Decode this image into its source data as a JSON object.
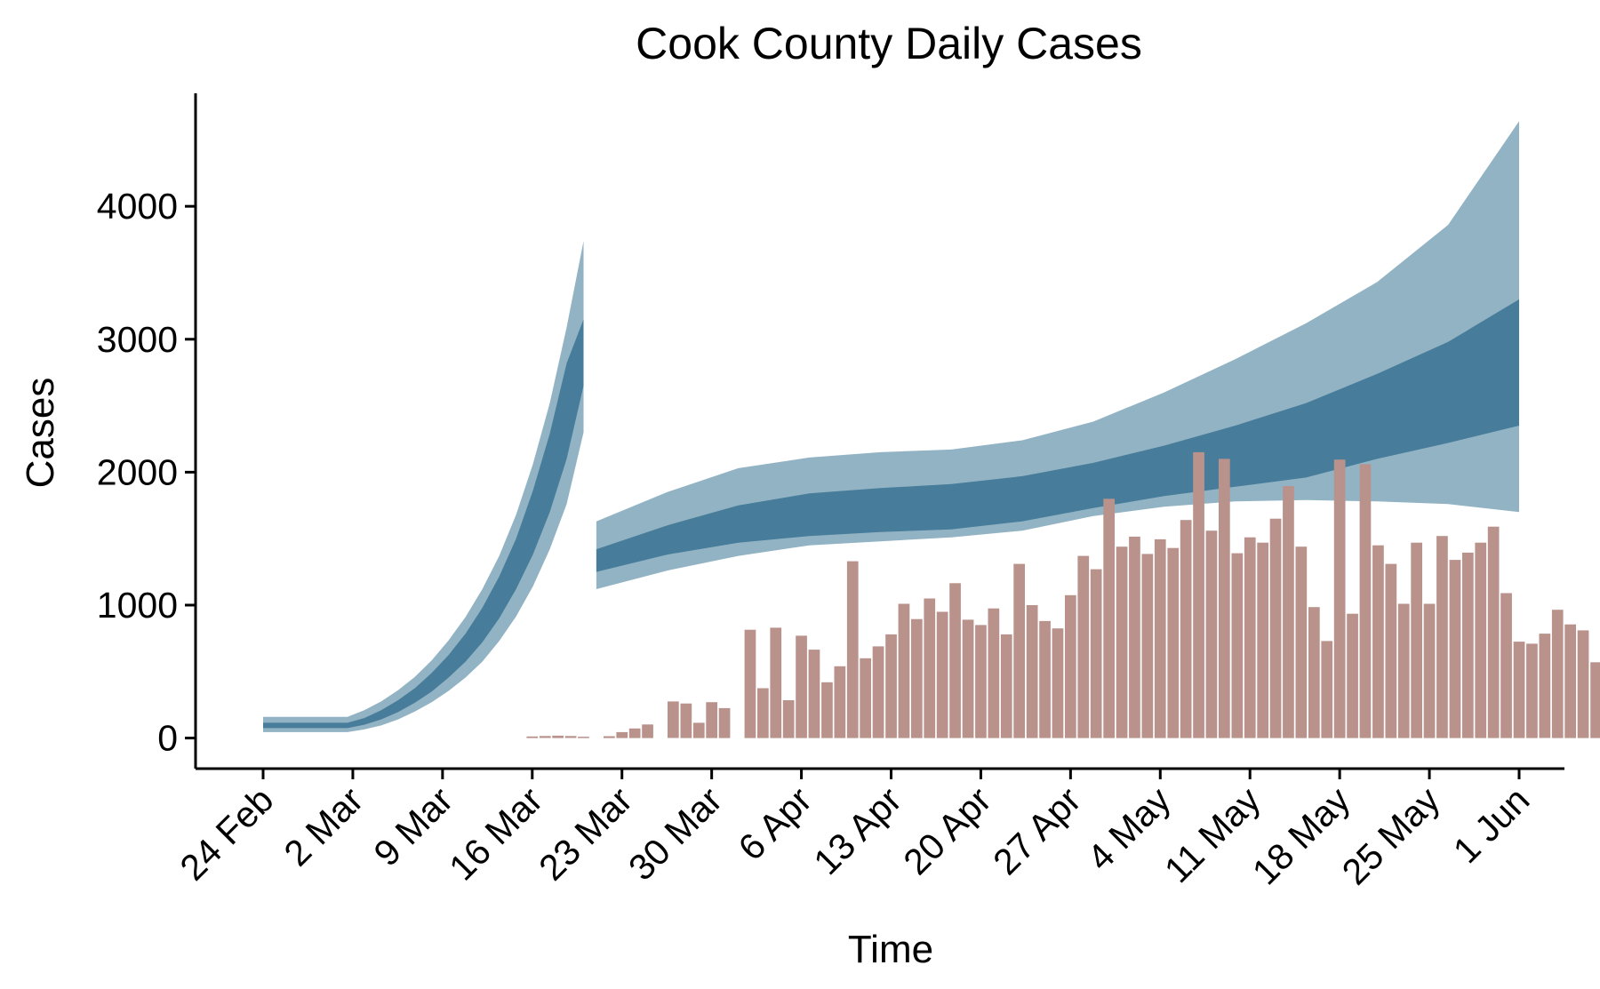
{
  "chart_data": {
    "type": "bar",
    "title": "Cook County Daily Cases",
    "xlabel": "Time",
    "ylabel": "Cases",
    "x_tick_labels": [
      "24 Feb",
      "2 Mar",
      "9 Mar",
      "16 Mar",
      "23 Mar",
      "30 Mar",
      "6 Apr",
      "13 Apr",
      "20 Apr",
      "27 Apr",
      "4 May",
      "11 May",
      "18 May",
      "25 May",
      "1 Jun"
    ],
    "x_range": [
      "2020-02-24",
      "2020-06-01"
    ],
    "y_ticks": [
      0,
      1000,
      2000,
      3000,
      4000
    ],
    "ylim": [
      -230,
      4850
    ],
    "bar_color": "#b9928c",
    "band_outer_color": "#5a8ba6",
    "band_inner_color": "#2d6b8c",
    "grid": false,
    "legend": "none",
    "observed_daily_cases": {
      "start_date": "2020-03-01",
      "values": [
        0,
        0,
        0,
        0,
        0,
        0,
        0,
        0,
        0,
        0,
        0,
        0,
        0,
        0,
        0,
        12,
        15,
        18,
        15,
        10,
        0,
        14,
        45,
        72,
        102,
        0,
        275,
        260,
        115,
        270,
        225,
        0,
        815,
        375,
        830,
        285,
        770,
        665,
        420,
        540,
        1330,
        600,
        690,
        780,
        1010,
        895,
        1050,
        950,
        1165,
        890,
        850,
        975,
        780,
        1310,
        1000,
        880,
        825,
        1075,
        1370,
        1270,
        1800,
        1440,
        1515,
        1385,
        1495,
        1430,
        1640,
        2150,
        1560,
        2100,
        1390,
        1510,
        1470,
        1650,
        1895,
        1440,
        985,
        730,
        2095,
        935,
        2060,
        1450,
        1310,
        1010,
        1470,
        1010,
        1520,
        1340,
        1395,
        1470,
        1590,
        1090,
        725,
        710,
        785,
        965,
        855,
        810,
        570
      ]
    },
    "projection_segments": [
      {
        "start_date": "2020-02-24",
        "end_date": "2020-03-20",
        "median": [
          95,
          95,
          95,
          95,
          95,
          95,
          125,
          175,
          240,
          320,
          420,
          540,
          680,
          850,
          1060,
          1310,
          1620,
          1990,
          2450,
          3000
        ],
        "inner_upper": [
          115,
          115,
          115,
          115,
          115,
          115,
          150,
          210,
          285,
          375,
          490,
          625,
          785,
          980,
          1215,
          1500,
          1860,
          2290,
          2820,
          3150
        ],
        "inner_lower": [
          75,
          75,
          75,
          75,
          75,
          75,
          100,
          140,
          195,
          265,
          350,
          455,
          575,
          720,
          900,
          1120,
          1380,
          1700,
          2100,
          2650
        ],
        "outer_upper": [
          160,
          160,
          160,
          160,
          160,
          160,
          210,
          275,
          360,
          460,
          585,
          735,
          910,
          1120,
          1370,
          1680,
          2060,
          2520,
          3090,
          3740
        ],
        "outer_lower": [
          45,
          45,
          45,
          45,
          45,
          45,
          65,
          95,
          140,
          200,
          270,
          355,
          455,
          575,
          730,
          915,
          1140,
          1420,
          1760,
          2300
        ]
      },
      {
        "start_date": "2020-03-21",
        "end_date": "2020-06-01",
        "median": [
          1280,
          1430,
          1550,
          1640,
          1700,
          1740,
          1800,
          1900,
          2000,
          2110,
          2240,
          2420,
          2600,
          2800
        ],
        "inner_upper": [
          1420,
          1600,
          1750,
          1840,
          1880,
          1910,
          1970,
          2070,
          2200,
          2350,
          2520,
          2740,
          2980,
          3300
        ],
        "inner_lower": [
          1250,
          1380,
          1470,
          1520,
          1550,
          1570,
          1630,
          1730,
          1820,
          1890,
          1960,
          2100,
          2220,
          2350
        ],
        "outer_upper": [
          1630,
          1850,
          2030,
          2110,
          2150,
          2170,
          2240,
          2380,
          2600,
          2850,
          3120,
          3430,
          3860,
          4640
        ],
        "outer_lower": [
          1120,
          1260,
          1370,
          1450,
          1480,
          1510,
          1560,
          1670,
          1740,
          1780,
          1790,
          1780,
          1760,
          1700
        ]
      }
    ]
  }
}
